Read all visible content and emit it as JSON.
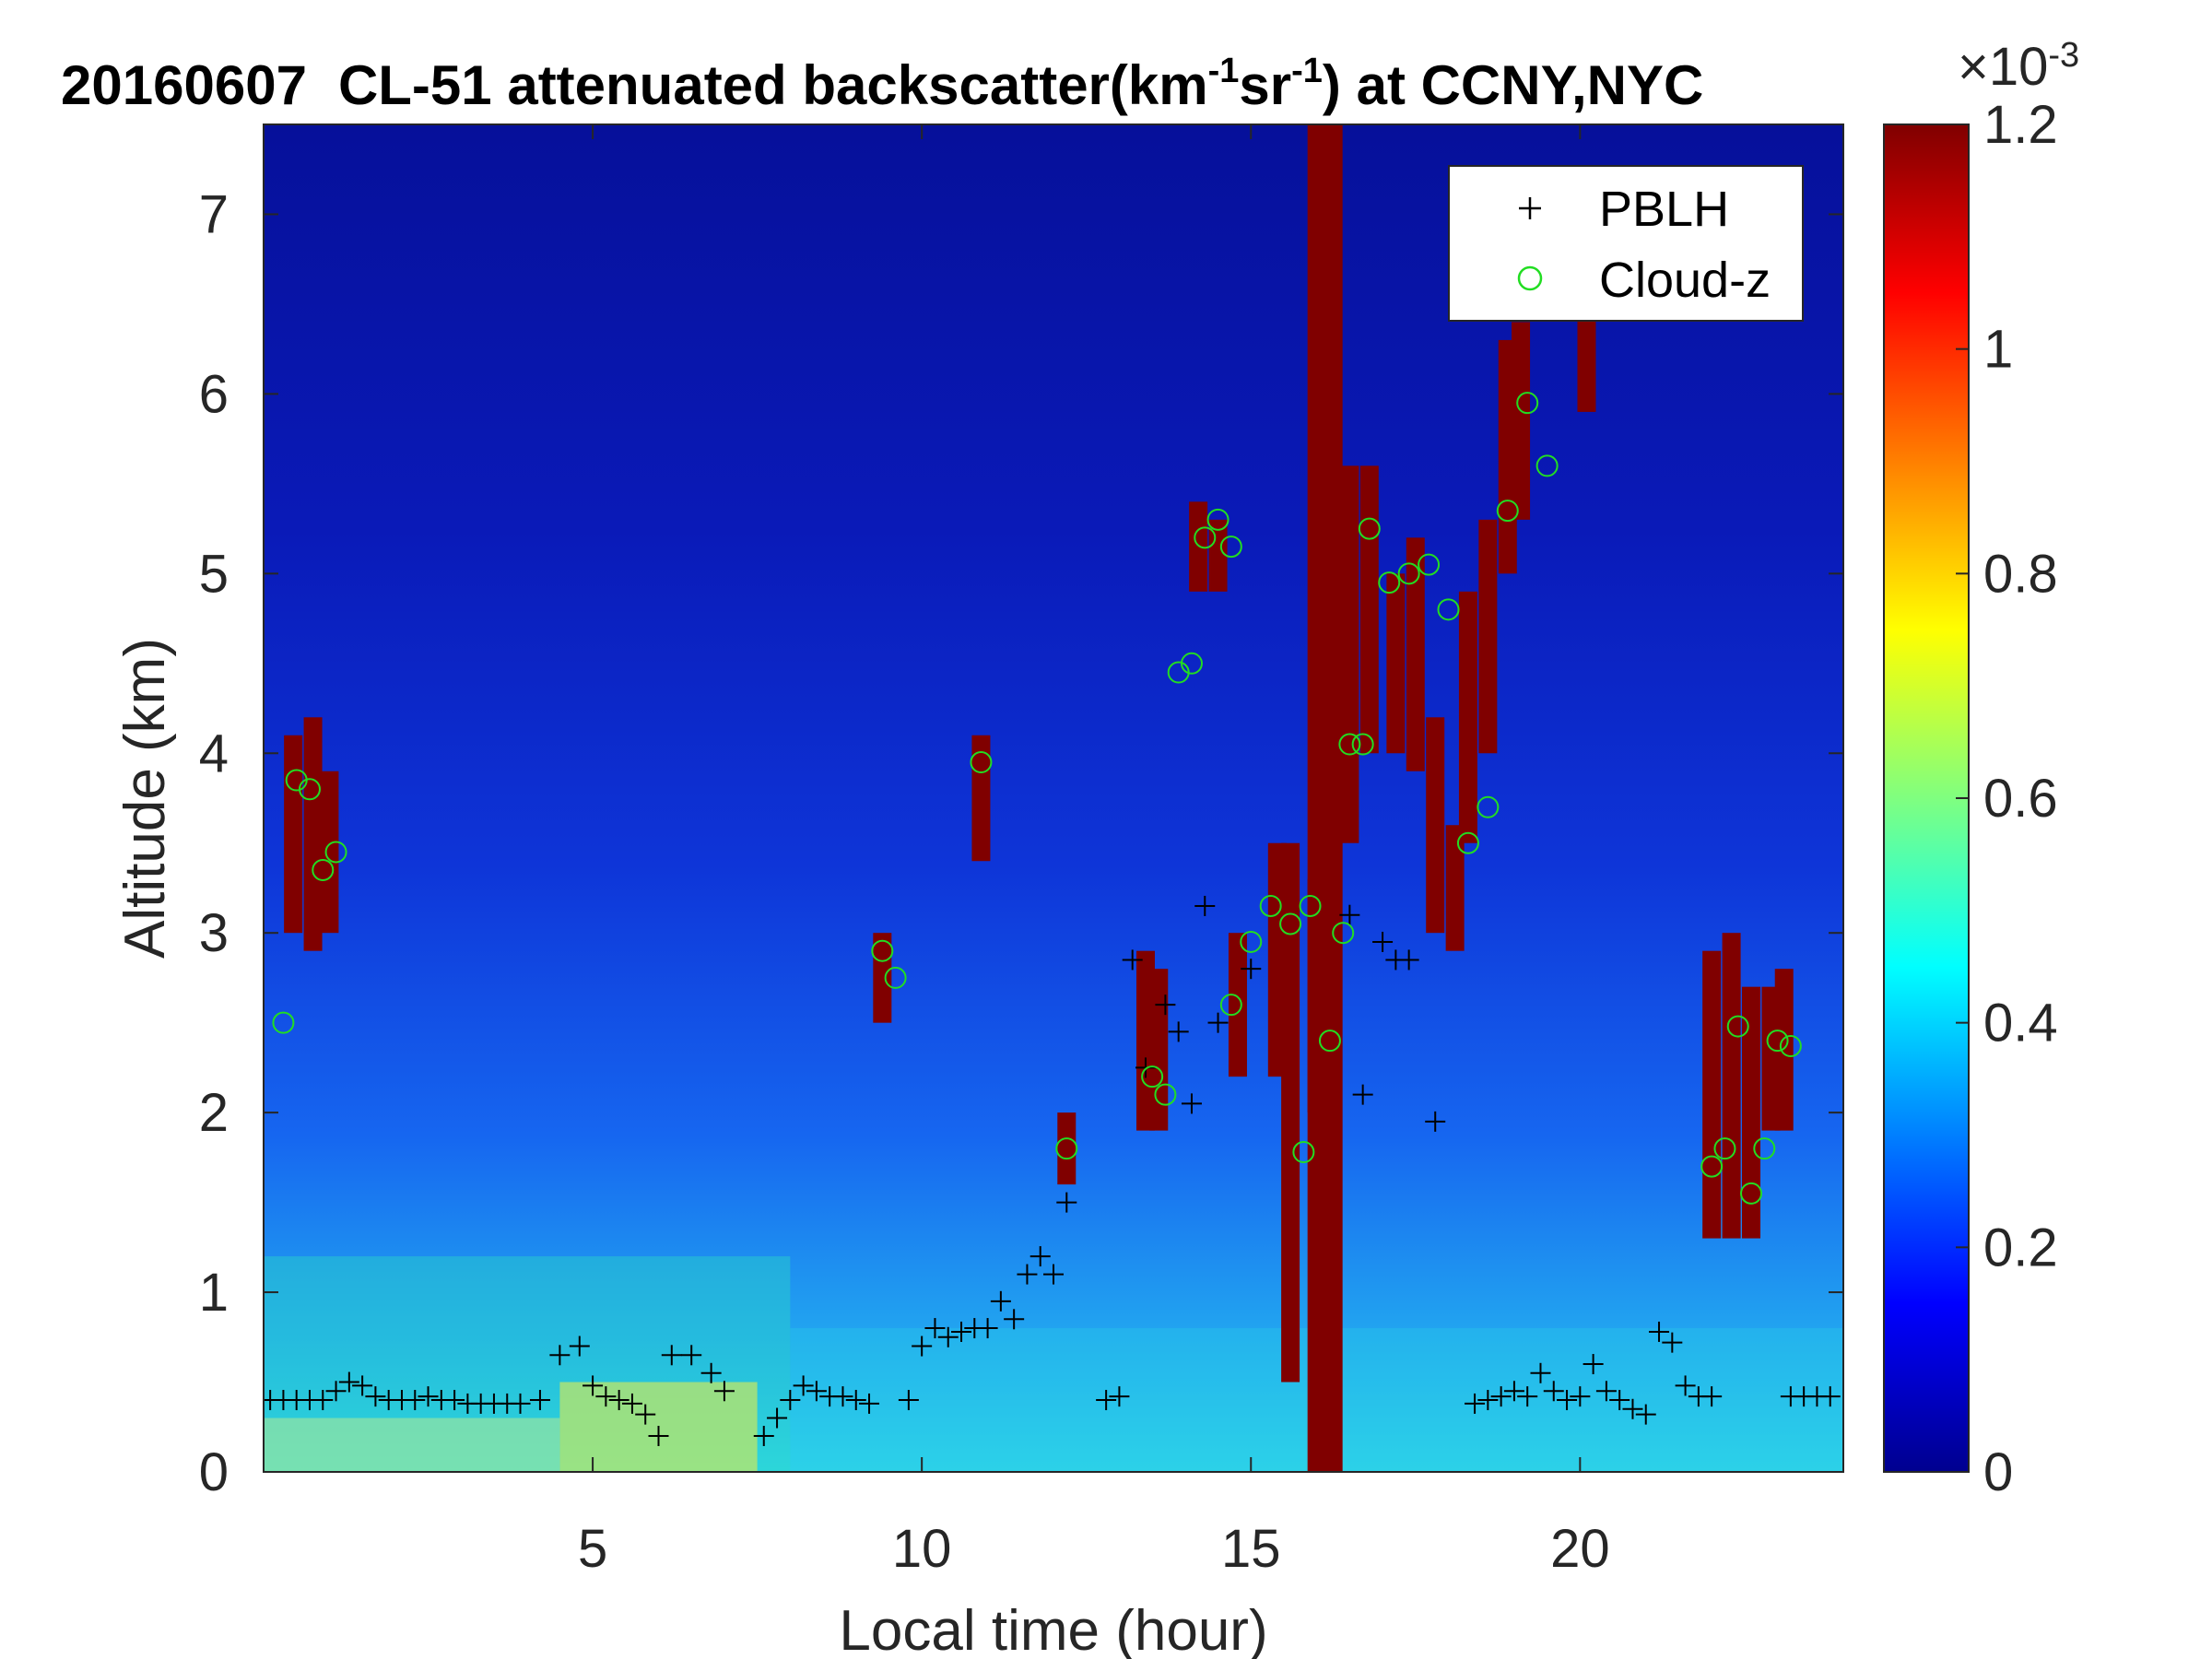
{
  "chart_data": {
    "type": "heatmap",
    "title": {
      "date": "20160607",
      "prefix": "CL-51 attenuated backscatter(km",
      "sup1": "-1",
      "mid": "sr",
      "sup2": "-1",
      "suffix": ") at CCNY,NYC"
    },
    "xlabel": "Local time (hour)",
    "ylabel": "Altitude (km)",
    "xlim": [
      0,
      24
    ],
    "ylim": [
      0,
      7.5
    ],
    "xticks": [
      5,
      10,
      15,
      20
    ],
    "yticks": [
      0,
      1,
      2,
      3,
      4,
      5,
      6,
      7
    ],
    "colorbar": {
      "colormap": "jet",
      "range": [
        0,
        1.2
      ],
      "ticks": [
        0,
        0.2,
        0.4,
        0.6,
        0.8,
        1,
        1.2
      ],
      "tick_labels": [
        "0",
        "0.2",
        "0.4",
        "0.6",
        "0.8",
        "1",
        "1.2"
      ],
      "exponent_base": "×10",
      "exponent_power": "-3"
    },
    "legend": {
      "position": "top-right",
      "entries": [
        {
          "label": "PBLH",
          "marker": "+",
          "color": "#000000"
        },
        {
          "label": "Cloud-z",
          "marker": "o",
          "color": "#22dd22"
        }
      ]
    },
    "pblh": {
      "name": "PBLH",
      "x": [
        0.1,
        0.3,
        0.5,
        0.7,
        0.9,
        1.1,
        1.3,
        1.5,
        1.7,
        1.9,
        2.1,
        2.3,
        2.5,
        2.7,
        2.9,
        3.1,
        3.3,
        3.5,
        3.7,
        3.9,
        4.2,
        4.5,
        4.8,
        5.0,
        5.2,
        5.4,
        5.6,
        5.8,
        6.0,
        6.2,
        6.5,
        6.8,
        7.0,
        7.6,
        7.8,
        8.0,
        8.2,
        8.4,
        8.6,
        8.8,
        9.0,
        9.2,
        9.8,
        10.0,
        10.2,
        10.4,
        10.6,
        10.8,
        11.0,
        11.2,
        11.4,
        11.6,
        11.8,
        12.0,
        12.2,
        12.8,
        13.0,
        13.2,
        13.4,
        13.7,
        13.9,
        14.1,
        14.3,
        14.5,
        15.0,
        16.5,
        16.7,
        17.0,
        17.2,
        17.4,
        17.8,
        18.4,
        18.6,
        18.8,
        19.0,
        19.2,
        19.4,
        19.6,
        19.8,
        20.0,
        20.2,
        20.4,
        20.6,
        20.8,
        21.0,
        21.2,
        21.4,
        21.6,
        21.8,
        22.0,
        23.2,
        23.4,
        23.6,
        23.8
      ],
      "y": [
        0.4,
        0.4,
        0.4,
        0.4,
        0.4,
        0.45,
        0.5,
        0.48,
        0.42,
        0.4,
        0.4,
        0.4,
        0.42,
        0.4,
        0.4,
        0.38,
        0.38,
        0.38,
        0.38,
        0.38,
        0.4,
        0.65,
        0.7,
        0.48,
        0.42,
        0.4,
        0.38,
        0.32,
        0.2,
        0.65,
        0.65,
        0.55,
        0.45,
        0.2,
        0.3,
        0.4,
        0.48,
        0.45,
        0.42,
        0.42,
        0.4,
        0.38,
        0.4,
        0.7,
        0.8,
        0.75,
        0.78,
        0.8,
        0.8,
        0.95,
        0.85,
        1.1,
        1.2,
        1.1,
        1.5,
        0.4,
        0.42,
        2.85,
        2.25,
        2.6,
        2.45,
        2.05,
        3.15,
        2.5,
        2.8,
        3.1,
        2.1,
        2.95,
        2.85,
        2.85,
        1.95,
        0.38,
        0.4,
        0.42,
        0.45,
        0.42,
        0.55,
        0.45,
        0.4,
        0.42,
        0.6,
        0.45,
        0.4,
        0.35,
        0.32,
        0.78,
        0.72,
        0.48,
        0.42,
        0.42,
        0.42,
        0.42,
        0.42,
        0.42
      ]
    },
    "cloud_z": {
      "name": "Cloud-z",
      "x": [
        0.3,
        0.5,
        0.7,
        0.9,
        1.1,
        13.5,
        13.7,
        13.9,
        14.1,
        14.3,
        14.5,
        14.7,
        15.0,
        15.3,
        15.6,
        15.9,
        16.2,
        16.5,
        16.8,
        17.1,
        17.4,
        17.7,
        18.0,
        18.3,
        18.6,
        18.9,
        19.2,
        19.5,
        10.9,
        9.4,
        9.6,
        12.2,
        14.7,
        15.8,
        16.4,
        16.7,
        22.0,
        22.2,
        22.4,
        22.6,
        22.8,
        23.0,
        23.2
      ],
      "y": [
        2.5,
        3.85,
        3.8,
        3.35,
        3.45,
        2.2,
        2.1,
        4.45,
        4.5,
        5.2,
        5.3,
        5.15,
        2.95,
        3.15,
        3.05,
        3.15,
        2.4,
        4.05,
        5.25,
        4.95,
        5.0,
        5.05,
        4.8,
        3.5,
        3.7,
        5.35,
        5.95,
        5.6,
        3.95,
        2.9,
        2.75,
        1.8,
        2.6,
        1.78,
        3.0,
        4.05,
        1.7,
        1.8,
        2.48,
        1.55,
        1.8,
        2.4,
        2.37
      ]
    }
  }
}
